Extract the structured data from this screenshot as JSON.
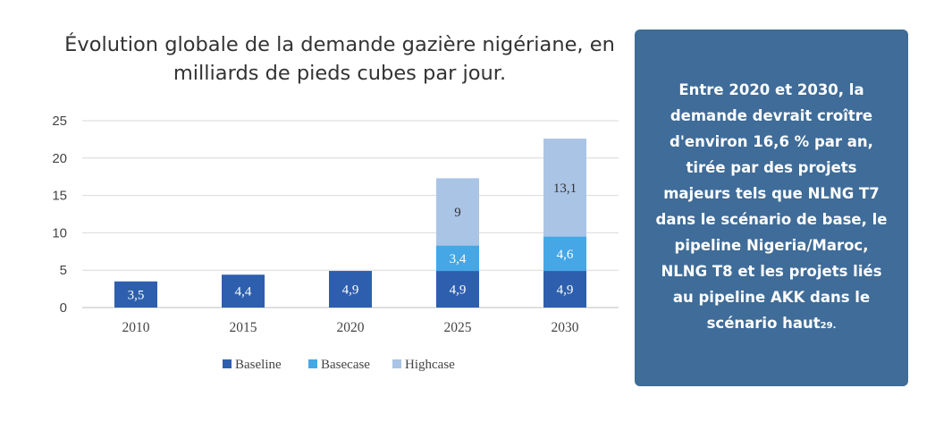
{
  "chart_data": {
    "type": "bar",
    "stacked": true,
    "title": "Évolution globale de la demande gazière nigériane, en milliards de pieds cubes par jour.",
    "categories": [
      "2010",
      "2015",
      "2020",
      "2025",
      "2030"
    ],
    "series": [
      {
        "name": "Baseline",
        "color": "#2e5fae",
        "values": [
          3.5,
          4.4,
          4.9,
          4.9,
          4.9
        ],
        "labels": [
          "3,5",
          "4,4",
          "4,9",
          "4,9",
          "4,9"
        ]
      },
      {
        "name": "Basecase",
        "color": "#45a7e6",
        "values": [
          0,
          0,
          0,
          3.4,
          4.6
        ],
        "labels": [
          "",
          "",
          "",
          "3,4",
          "4,6"
        ]
      },
      {
        "name": "Highcase",
        "color": "#aac4e6",
        "values": [
          0,
          0,
          0,
          9,
          13.1
        ],
        "labels": [
          "",
          "",
          "",
          "9",
          "13,1"
        ]
      }
    ],
    "ylim": [
      0,
      25
    ],
    "yticks": [
      "0",
      "5",
      "10",
      "15",
      "20",
      "25"
    ],
    "grid": true,
    "legend": "bottom"
  },
  "info": {
    "text": "Entre 2020 et 2030, la demande devrait croître d'environ 16,6 % par an, tirée par des projets majeurs tels que NLNG T7 dans le scénario de base, le pipeline Nigeria/Maroc, NLNG T8 et les projets liés au pipeline AKK dans le scénario haut",
    "footnote": "29."
  }
}
